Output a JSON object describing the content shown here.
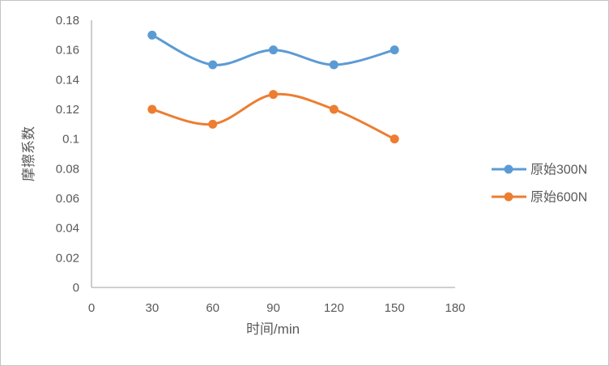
{
  "chart_data": {
    "type": "line",
    "title": "",
    "xlabel": "时间/min",
    "ylabel": "摩擦系数",
    "x": [
      30,
      60,
      90,
      120,
      150
    ],
    "series": [
      {
        "name": "原始300N",
        "color": "#5B9BD5",
        "values": [
          0.17,
          0.15,
          0.16,
          0.15,
          0.16
        ]
      },
      {
        "name": "原始600N",
        "color": "#ED7D31",
        "values": [
          0.12,
          0.11,
          0.13,
          0.12,
          0.1
        ]
      }
    ],
    "xlim": [
      0,
      180
    ],
    "ylim": [
      0,
      0.18
    ],
    "x_ticks": [
      0,
      30,
      60,
      90,
      120,
      150,
      180
    ],
    "x_tick_labels": [
      "0",
      "30",
      "60",
      "90",
      "120",
      "150",
      "180"
    ],
    "y_ticks": [
      0,
      0.02,
      0.04,
      0.06,
      0.08,
      0.1,
      0.12,
      0.14,
      0.16,
      0.18
    ],
    "y_tick_labels": [
      "0",
      "0.02",
      "0.04",
      "0.06",
      "0.08",
      "0.1",
      "0.12",
      "0.14",
      "0.16",
      "0.18"
    ],
    "grid": false,
    "legend_position": "right",
    "smooth_lines": true
  },
  "style": {
    "axis_line_color": "#BFBFBF",
    "tick_text_color": "#595959",
    "axis_title_color": "#595959",
    "legend_text_color": "#595959",
    "background_color": "#FFFFFF",
    "border_color": "#C3C4C6"
  }
}
